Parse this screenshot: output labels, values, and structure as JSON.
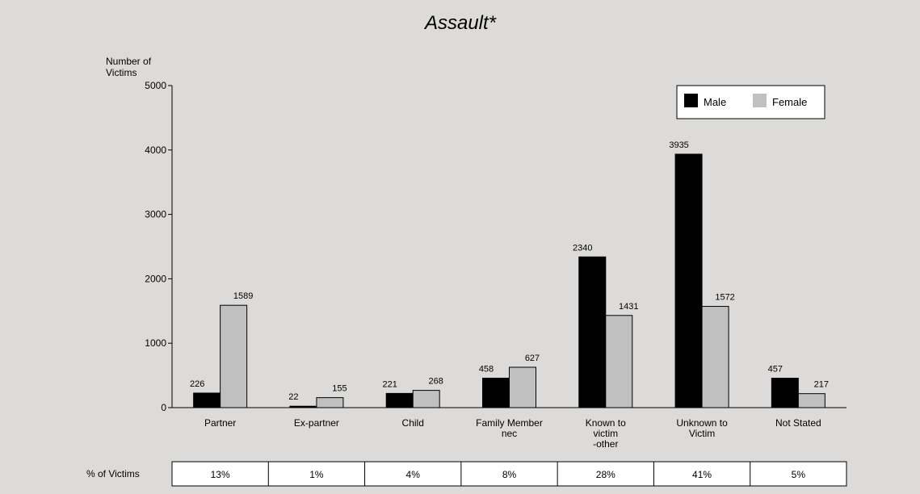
{
  "chart_data": {
    "type": "bar",
    "title": "Assault*",
    "ylabel_lines": [
      "Number of",
      "Victims"
    ],
    "xlabel": "",
    "ylim": [
      0,
      5000
    ],
    "yticks": [
      0,
      1000,
      2000,
      3000,
      4000,
      5000
    ],
    "categories": [
      [
        "Partner"
      ],
      [
        "Ex-partner"
      ],
      [
        "Child"
      ],
      [
        "Family Member",
        "nec"
      ],
      [
        "Known to",
        "victim",
        "-other"
      ],
      [
        "Unknown to",
        "Victim"
      ],
      [
        "Not Stated"
      ]
    ],
    "series": [
      {
        "name": "Male",
        "color": "#000000",
        "values": [
          226,
          22,
          221,
          458,
          2340,
          3935,
          457
        ]
      },
      {
        "name": "Female",
        "color": "#c0c0c0",
        "values": [
          1589,
          155,
          268,
          627,
          1431,
          1572,
          217
        ]
      }
    ],
    "legend": {
      "position": "top-right"
    },
    "grid": false
  },
  "pct_table": {
    "label": "% of Victims",
    "values": [
      "13%",
      "1%",
      "4%",
      "8%",
      "28%",
      "41%",
      "5%"
    ]
  }
}
